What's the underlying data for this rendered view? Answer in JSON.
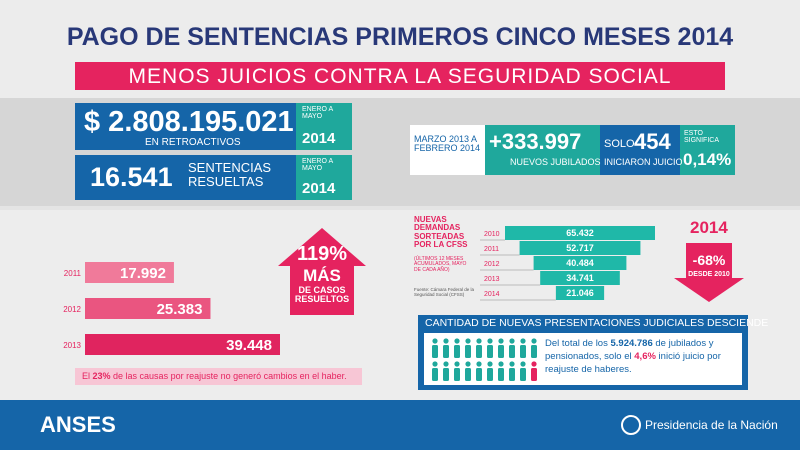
{
  "title": "PAGO DE SENTENCIAS PRIMEROS CINCO MESES 2014",
  "banner": "MENOS JUICIOS CONTRA LA SEGURIDAD SOCIAL",
  "retroactivos": {
    "amount": "$ 2.808.195.021",
    "label": "EN RETROACTIVOS",
    "period": "ENERO A MAYO",
    "year": "2014"
  },
  "sentencias": {
    "amount": "16.541",
    "label": "SENTENCIAS RESUELTAS",
    "period": "ENERO A MAYO",
    "year": "2014"
  },
  "jubilados": {
    "period": "MARZO 2013 A FEBRERO 2014",
    "amount": "+333.997",
    "label": "NUEVOS JUBILADOS",
    "solo": "SOLO",
    "juicios": "454",
    "juicios_label": "INICIARON JUICIO",
    "significa": "ESTO SIGNIFICA",
    "percent": "0,14%"
  },
  "sentencias_chart": {
    "categories": [
      "2011",
      "2012",
      "2013"
    ],
    "values": [
      17992,
      25383,
      39448
    ],
    "value_labels": [
      "17.992",
      "25.383",
      "39.448"
    ],
    "increase": "119%",
    "increase_more": "MÁS",
    "increase_text": "DE CASOS RESUELTOS"
  },
  "note": [
    "El ",
    "23%",
    " de las causas por reajuste no generó cambios en el haber."
  ],
  "demandas": {
    "heading": "NUEVAS DEMANDAS SORTEADAS POR LA CFSS",
    "subheading": "(ÚLTIMOS 12 MESES ACUMULADOS, MAYO DE CADA AÑO)",
    "source": "Fuente: Cámara Federal de la Seguridad Social (CFSS)",
    "categories": [
      "2010",
      "2011",
      "2012",
      "2013",
      "2014"
    ],
    "values": [
      65432,
      52717,
      40484,
      34741,
      21046
    ],
    "value_labels": [
      "65.432",
      "52.717",
      "40.484",
      "34.741",
      "21.046"
    ],
    "year": "2014",
    "change": "-68%",
    "change_text": "DESDE 2010"
  },
  "presentaciones": {
    "heading": "CANTIDAD DE NUEVAS PRESENTACIONES JUDICIALES DESCIENDE",
    "text": [
      "Del total de los ",
      "5.924.786",
      " de jubilados y pensionados, solo el ",
      "4,6%",
      " inició juicio por reajuste de haberes."
    ]
  },
  "footer": {
    "brand": "ANSES",
    "government": "Presidencia de la Nación"
  }
}
